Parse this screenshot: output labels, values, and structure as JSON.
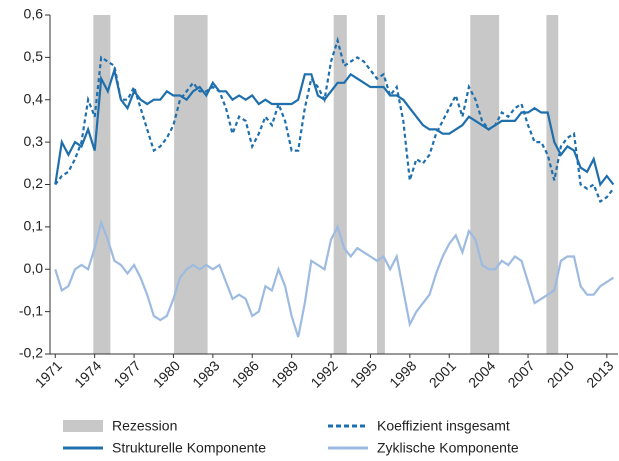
{
  "chart_data": {
    "type": "line",
    "x": [
      1971,
      1971.5,
      1972,
      1972.5,
      1973,
      1973.5,
      1974,
      1974.5,
      1975,
      1975.5,
      1976,
      1976.5,
      1977,
      1977.5,
      1978,
      1978.5,
      1979,
      1979.5,
      1980,
      1980.5,
      1981,
      1981.5,
      1982,
      1982.5,
      1983,
      1983.5,
      1984,
      1984.5,
      1985,
      1985.5,
      1986,
      1986.5,
      1987,
      1987.5,
      1988,
      1988.5,
      1989,
      1989.5,
      1990,
      1990.5,
      1991,
      1991.5,
      1992,
      1992.5,
      1993,
      1993.5,
      1994,
      1994.5,
      1995,
      1995.5,
      1996,
      1996.5,
      1997,
      1997.5,
      1998,
      1998.5,
      1999,
      1999.5,
      2000,
      2000.5,
      2001,
      2001.5,
      2002,
      2002.5,
      2003,
      2003.5,
      2004,
      2004.5,
      2005,
      2005.5,
      2006,
      2006.5,
      2007,
      2007.5,
      2008,
      2008.5,
      2009,
      2009.5,
      2010,
      2010.5,
      2011,
      2011.5,
      2012,
      2012.5,
      2013,
      2013.5
    ],
    "xlim": [
      1970.6,
      2013.85
    ],
    "xticks": [
      1971,
      1974,
      1977,
      1980,
      1983,
      1986,
      1989,
      1992,
      1995,
      1998,
      2001,
      2004,
      2007,
      2010,
      2013
    ],
    "ylim": [
      -0.2,
      0.6
    ],
    "yticks": [
      {
        "value": -0.2,
        "label": "-0,2"
      },
      {
        "value": -0.1,
        "label": "-0,1"
      },
      {
        "value": 0,
        "label": "0,0"
      },
      {
        "value": 0.1,
        "label": "0,1"
      },
      {
        "value": 0.2,
        "label": "0,2"
      },
      {
        "value": 0.3,
        "label": "0,3"
      },
      {
        "value": 0.4,
        "label": "0,4"
      },
      {
        "value": 0.5,
        "label": "0,5"
      },
      {
        "value": 0.6,
        "label": "0,6"
      }
    ],
    "recessions": {
      "name": "Rezession",
      "color": "#c8c8c8",
      "periods": [
        [
          1973.9,
          1975.2
        ],
        [
          1980.05,
          1982.6
        ],
        [
          1992.2,
          1993.2
        ],
        [
          1995.5,
          1996.1
        ],
        [
          2002.6,
          2004.8
        ],
        [
          2008.4,
          2009.3
        ]
      ]
    },
    "series": [
      {
        "name": "Strukturelle Komponente",
        "color": "#1f6fad",
        "style": "solid",
        "values": [
          0.2,
          0.3,
          0.27,
          0.3,
          0.29,
          0.33,
          0.28,
          0.45,
          0.42,
          0.47,
          0.4,
          0.38,
          0.42,
          0.4,
          0.39,
          0.4,
          0.4,
          0.42,
          0.41,
          0.41,
          0.4,
          0.42,
          0.43,
          0.41,
          0.44,
          0.42,
          0.42,
          0.4,
          0.41,
          0.4,
          0.41,
          0.39,
          0.4,
          0.39,
          0.39,
          0.39,
          0.39,
          0.4,
          0.46,
          0.46,
          0.41,
          0.4,
          0.42,
          0.44,
          0.44,
          0.46,
          0.45,
          0.44,
          0.43,
          0.43,
          0.43,
          0.41,
          0.41,
          0.4,
          0.38,
          0.36,
          0.34,
          0.33,
          0.33,
          0.32,
          0.32,
          0.33,
          0.34,
          0.36,
          0.35,
          0.34,
          0.33,
          0.34,
          0.35,
          0.35,
          0.35,
          0.37,
          0.37,
          0.38,
          0.37,
          0.37,
          0.3,
          0.27,
          0.29,
          0.28,
          0.24,
          0.23,
          0.26,
          0.2,
          0.22,
          0.2
        ]
      },
      {
        "name": "Koeffizient insgesamt",
        "color": "#1f6fad",
        "style": "dashed",
        "values": [
          0.2,
          0.22,
          0.23,
          0.26,
          0.3,
          0.4,
          0.36,
          0.5,
          0.49,
          0.48,
          0.4,
          0.4,
          0.43,
          0.38,
          0.33,
          0.28,
          0.29,
          0.31,
          0.34,
          0.4,
          0.42,
          0.44,
          0.42,
          0.42,
          0.43,
          0.42,
          0.38,
          0.32,
          0.36,
          0.35,
          0.29,
          0.32,
          0.36,
          0.34,
          0.39,
          0.35,
          0.28,
          0.28,
          0.38,
          0.45,
          0.43,
          0.4,
          0.49,
          0.54,
          0.48,
          0.49,
          0.5,
          0.49,
          0.47,
          0.45,
          0.46,
          0.41,
          0.43,
          0.35,
          0.21,
          0.26,
          0.25,
          0.27,
          0.32,
          0.35,
          0.38,
          0.41,
          0.36,
          0.43,
          0.4,
          0.35,
          0.33,
          0.34,
          0.37,
          0.36,
          0.38,
          0.39,
          0.34,
          0.3,
          0.3,
          0.27,
          0.21,
          0.29,
          0.31,
          0.32,
          0.2,
          0.19,
          0.2,
          0.16,
          0.17,
          0.19
        ]
      },
      {
        "name": "Zyklische Komponente",
        "color": "#9dbbe0",
        "style": "solid",
        "values": [
          0.0,
          -0.05,
          -0.04,
          0.0,
          0.01,
          0.0,
          0.05,
          0.11,
          0.07,
          0.02,
          0.01,
          -0.01,
          0.01,
          -0.02,
          -0.06,
          -0.11,
          -0.12,
          -0.11,
          -0.07,
          -0.02,
          0.0,
          0.01,
          0.0,
          0.01,
          0.0,
          0.01,
          -0.03,
          -0.07,
          -0.06,
          -0.07,
          -0.11,
          -0.1,
          -0.04,
          -0.05,
          0.0,
          -0.04,
          -0.11,
          -0.16,
          -0.08,
          0.02,
          0.01,
          0.0,
          0.07,
          0.1,
          0.05,
          0.03,
          0.05,
          0.04,
          0.03,
          0.02,
          0.03,
          0.0,
          0.03,
          -0.05,
          -0.13,
          -0.1,
          -0.08,
          -0.06,
          -0.01,
          0.03,
          0.06,
          0.08,
          0.04,
          0.09,
          0.07,
          0.01,
          0.0,
          0.0,
          0.02,
          0.01,
          0.03,
          0.02,
          -0.03,
          -0.08,
          -0.07,
          -0.06,
          -0.05,
          0.02,
          0.03,
          0.03,
          -0.04,
          -0.06,
          -0.06,
          -0.04,
          -0.03,
          -0.02
        ]
      }
    ]
  }
}
